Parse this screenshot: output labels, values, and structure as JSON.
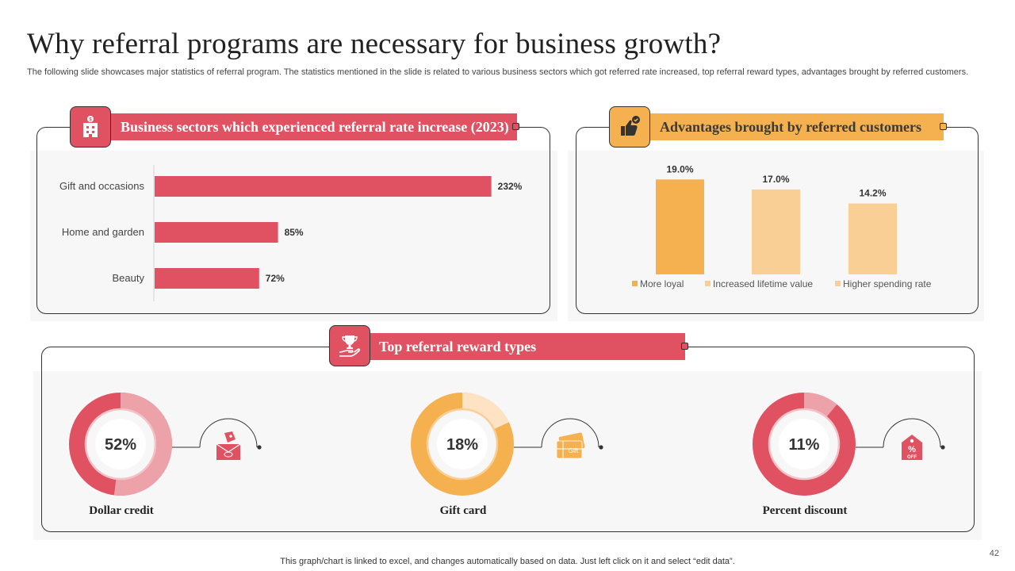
{
  "slide": {
    "title": "Why referral programs are necessary for business growth?",
    "subtitle": "The following slide showcases major statistics of referral program. The statistics mentioned in the slide is related to various business sectors which got referred rate increased, top referral reward types, advantages brought by referred customers.",
    "footnote": "This graph/chart is linked to excel,  and changes automatically based on data. Just left click on it and select “edit data”.",
    "page_number": "42"
  },
  "panels": {
    "sectors": {
      "header": "Business sectors which experienced referral rate increase (2023)",
      "icon": "building-dollar-icon"
    },
    "advantages": {
      "header": "Advantages brought by referred customers",
      "icon": "thumbs-up-badge-icon"
    },
    "rewards": {
      "header": "Top referral reward types",
      "icon": "trophy-hand-icon"
    }
  },
  "colors": {
    "red": "#e05262",
    "red_light": "#eda2a9",
    "orange": "#f5b04f",
    "orange_light": "#f9cf95",
    "peach": "#fde3c4"
  },
  "chart_data": [
    {
      "type": "bar",
      "orientation": "horizontal",
      "title": "Business sectors which experienced referral rate increase (2023)",
      "categories": [
        "Gift and occasions",
        "Home and garden",
        "Beauty"
      ],
      "values": [
        232,
        85,
        72
      ],
      "value_labels": [
        "232%",
        "85%",
        "72%"
      ],
      "unit": "%",
      "xlim": [
        0,
        240
      ]
    },
    {
      "type": "bar",
      "orientation": "vertical",
      "title": "Advantages brought by referred customers",
      "series": [
        {
          "name": "More loyal",
          "value": 19.0,
          "label": "19.0%"
        },
        {
          "name": "Increased lifetime value",
          "value": 17.0,
          "label": "17.0%"
        },
        {
          "name": "Higher spending rate",
          "value": 14.2,
          "label": "14.2%"
        }
      ],
      "ylim": [
        0,
        20
      ],
      "legend": "bottom"
    },
    {
      "type": "pie",
      "variant": "donut",
      "title": "Top referral reward types",
      "items": [
        {
          "name": "Dollar credit",
          "value": 52,
          "label": "52%",
          "icon": "money-envelope-icon",
          "theme": "red"
        },
        {
          "name": "Gift card",
          "value": 18,
          "label": "18%",
          "icon": "gift-card-icon",
          "theme": "orange"
        },
        {
          "name": "Percent discount",
          "value": 11,
          "label": "11%",
          "icon": "percent-tag-icon",
          "theme": "red"
        }
      ]
    }
  ]
}
